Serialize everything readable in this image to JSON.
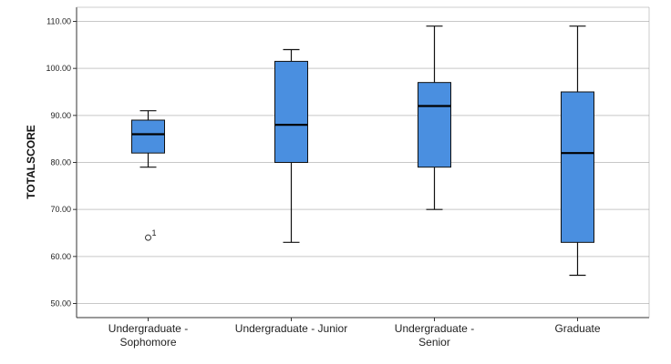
{
  "chart_data": {
    "type": "boxplot",
    "ylabel": "TOTALSCORE",
    "xlabel": "",
    "ylim": [
      47,
      113
    ],
    "y_ticks": [
      "50.00",
      "60.00",
      "70.00",
      "80.00",
      "90.00",
      "100.00",
      "110.00"
    ],
    "y_tick_values": [
      50,
      60,
      70,
      80,
      90,
      100,
      110
    ],
    "grid": true,
    "box_color": "#4a8fe0",
    "categories": [
      {
        "line1": "Undergraduate -",
        "line2": "Sophomore"
      },
      {
        "line1": "Undergraduate - Junior",
        "line2": ""
      },
      {
        "line1": "Undergraduate -",
        "line2": "Senior"
      },
      {
        "line1": "Graduate",
        "line2": ""
      }
    ],
    "boxes": [
      {
        "min": 79,
        "q1": 82,
        "median": 86,
        "q3": 89,
        "max": 91,
        "outliers": [
          {
            "value": 64,
            "label": "1"
          }
        ]
      },
      {
        "min": 63,
        "q1": 80,
        "median": 88,
        "q3": 101.5,
        "max": 104,
        "outliers": []
      },
      {
        "min": 70,
        "q1": 79,
        "median": 92,
        "q3": 97,
        "max": 109,
        "outliers": []
      },
      {
        "min": 56,
        "q1": 63,
        "median": 82,
        "q3": 95,
        "max": 109,
        "outliers": []
      }
    ]
  }
}
